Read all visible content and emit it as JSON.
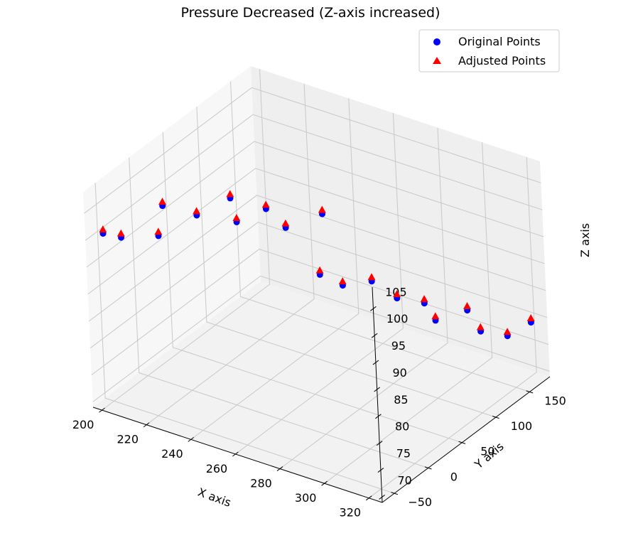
{
  "chart_data": {
    "type": "scatter",
    "projection": "3d",
    "title": "Pressure Decreased (Z-axis increased)",
    "xlabel": "X axis",
    "ylabel": "Y axis",
    "zlabel": "Z axis",
    "xlim": [
      196,
      326
    ],
    "ylim": [
      -68,
      180
    ],
    "zlim": [
      69,
      109
    ],
    "x_ticks": [
      200,
      220,
      240,
      260,
      280,
      300,
      320
    ],
    "y_ticks": [
      -50,
      0,
      50,
      100,
      150
    ],
    "z_ticks": [
      70,
      75,
      80,
      85,
      90,
      95,
      100,
      105
    ],
    "grid": true,
    "legend_position": "top-right",
    "series": [
      {
        "name": "Original Points",
        "marker": "circle",
        "color": "#0000ff",
        "x": [
          201,
          206,
          215,
          217,
          225,
          233,
          238,
          244,
          251,
          259,
          265,
          272,
          277,
          285,
          291,
          297,
          305,
          311,
          319,
          323
        ],
        "y": [
          -58,
          -48,
          -15,
          -29,
          2,
          26,
          18,
          42,
          47,
          75,
          49,
          59,
          85,
          95,
          115,
          111,
          132,
          131,
          144,
          166
        ],
        "z": [
          101,
          100,
          104,
          100,
          102,
          104,
          101,
          102,
          99,
          100,
          92,
          90,
          89,
          86,
          84,
          82,
          83,
          80,
          79,
          80
        ]
      },
      {
        "name": "Adjusted Points",
        "marker": "triangle",
        "color": "#ff0000",
        "x": [
          201,
          206,
          215,
          217,
          225,
          233,
          238,
          244,
          251,
          259,
          265,
          272,
          277,
          285,
          291,
          297,
          305,
          311,
          319,
          323
        ],
        "y": [
          -58,
          -48,
          -15,
          -29,
          2,
          26,
          18,
          42,
          47,
          75,
          49,
          59,
          85,
          95,
          115,
          111,
          132,
          131,
          144,
          166
        ],
        "z": [
          101.6,
          100.6,
          104.6,
          100.6,
          102.6,
          104.6,
          101.6,
          102.6,
          99.6,
          100.6,
          92.6,
          90.6,
          89.6,
          86.6,
          84.6,
          82.6,
          83.6,
          80.6,
          79.6,
          80.6
        ]
      }
    ]
  }
}
